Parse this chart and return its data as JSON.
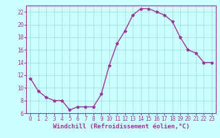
{
  "x": [
    0,
    1,
    2,
    3,
    4,
    5,
    6,
    7,
    8,
    9,
    10,
    11,
    12,
    13,
    14,
    15,
    16,
    17,
    18,
    19,
    20,
    21,
    22,
    23
  ],
  "y": [
    11.5,
    9.5,
    8.5,
    8.0,
    8.0,
    6.5,
    7.0,
    7.0,
    7.0,
    9.0,
    13.5,
    17.0,
    19.0,
    21.5,
    22.5,
    22.5,
    22.0,
    21.5,
    20.5,
    18.0,
    16.0,
    15.5,
    14.0,
    14.0
  ],
  "line_color": "#993399",
  "marker": "*",
  "marker_size": 3,
  "xlabel": "Windchill (Refroidissement éolien,°C)",
  "ylabel": "",
  "xlim": [
    -0.5,
    23.5
  ],
  "ylim": [
    6,
    23
  ],
  "yticks": [
    6,
    8,
    10,
    12,
    14,
    16,
    18,
    20,
    22
  ],
  "xticks": [
    0,
    1,
    2,
    3,
    4,
    5,
    6,
    7,
    8,
    9,
    10,
    11,
    12,
    13,
    14,
    15,
    16,
    17,
    18,
    19,
    20,
    21,
    22,
    23
  ],
  "background_color": "#ccffff",
  "grid_color": "#aadddd",
  "xlabel_fontsize": 6.5,
  "tick_fontsize": 5.5,
  "line_width": 1.0
}
